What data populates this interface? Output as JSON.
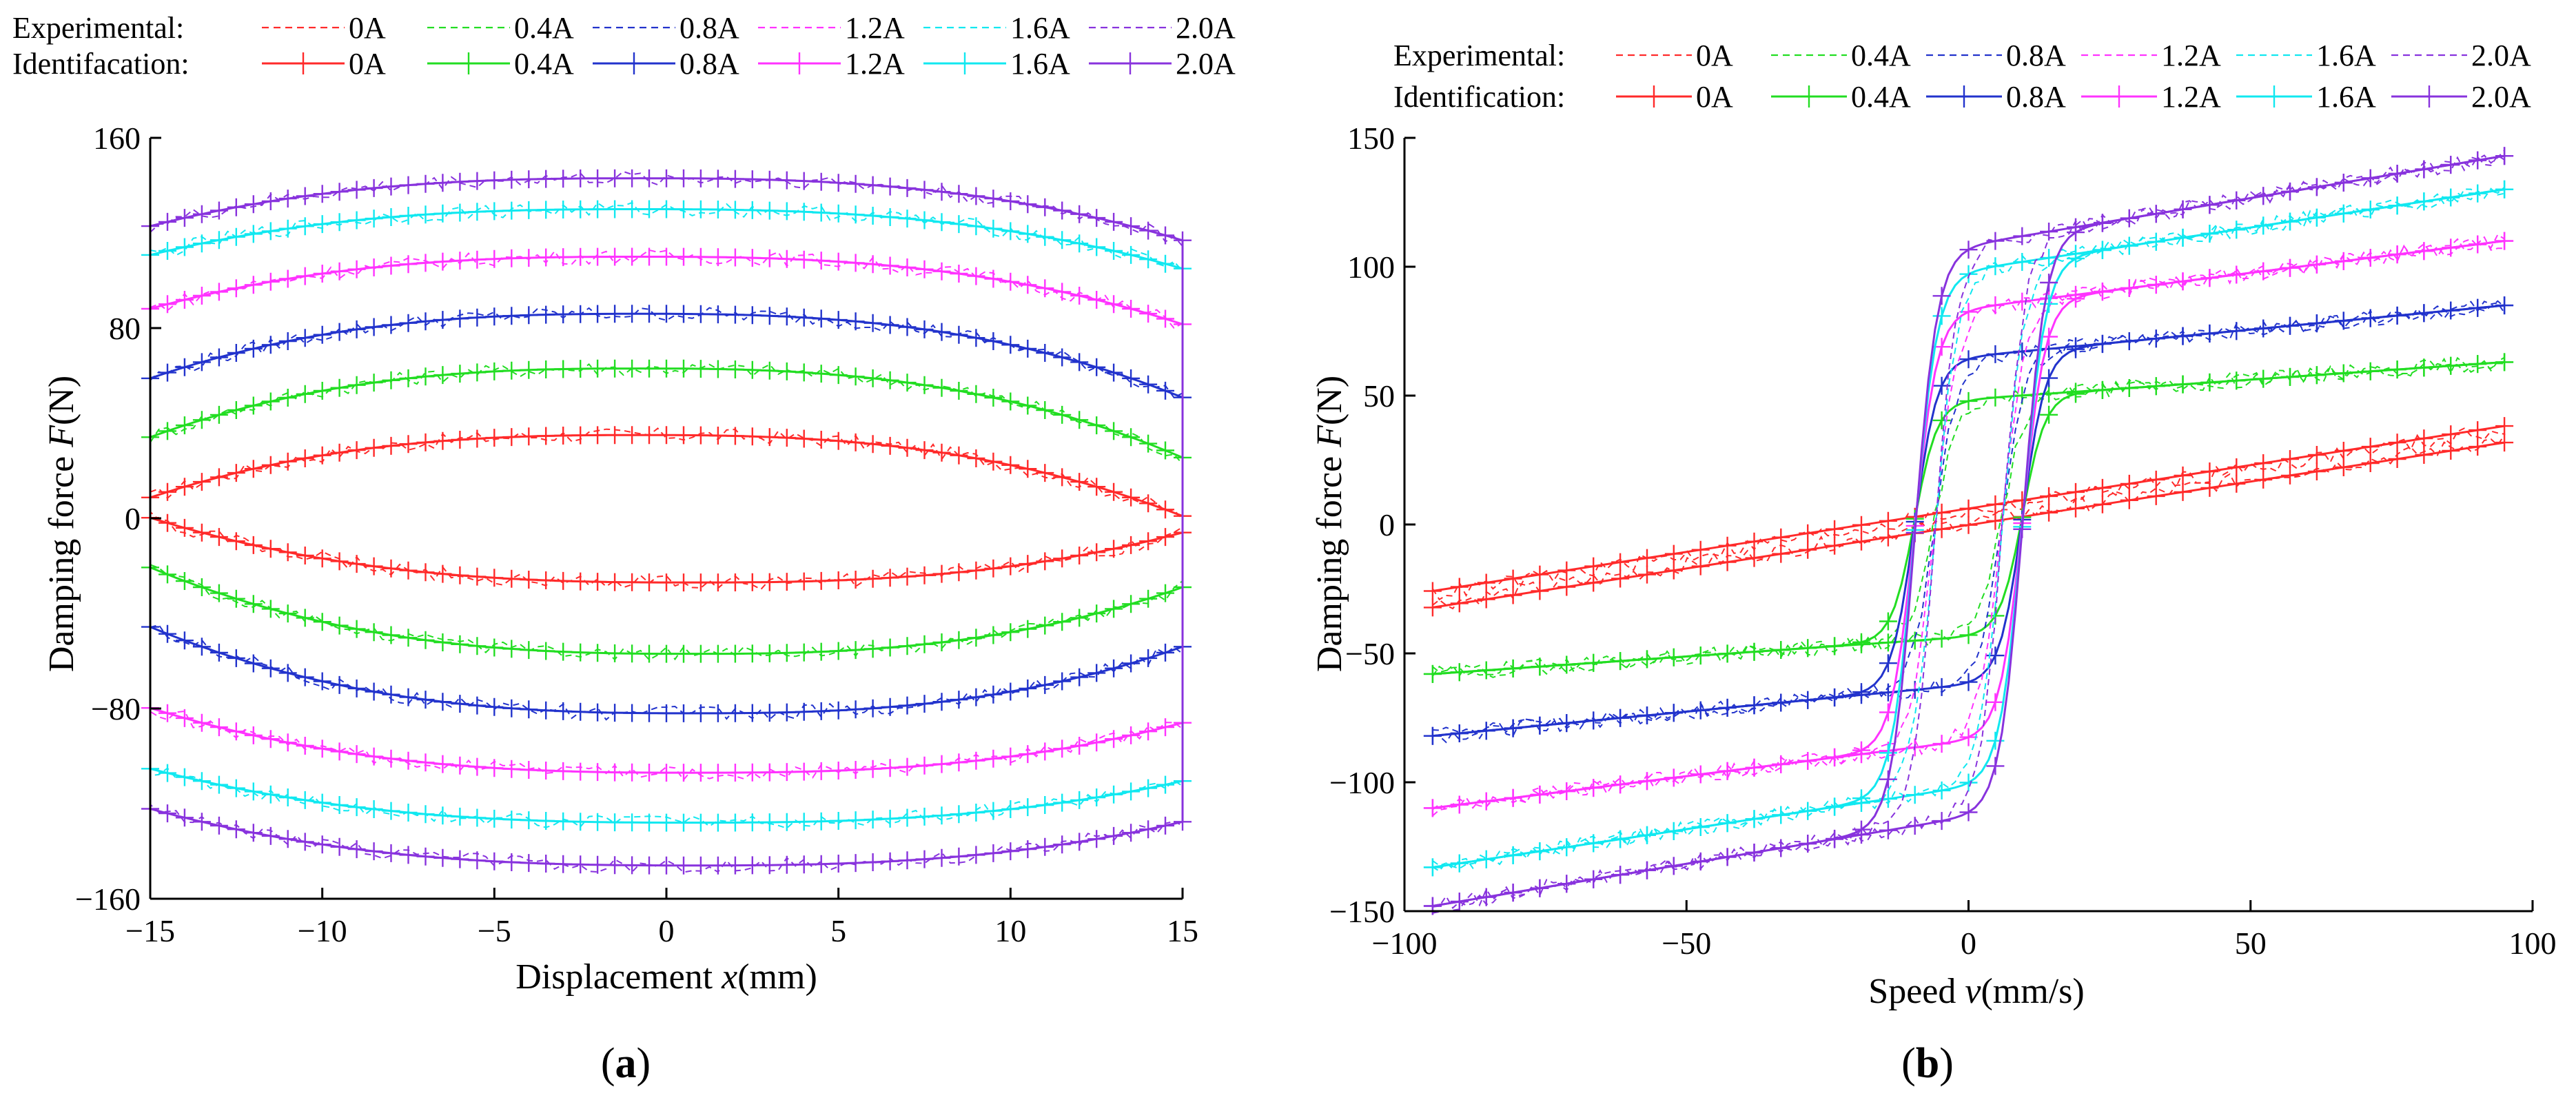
{
  "colors": {
    "0A": "#ff2a2a",
    "0.4A": "#22dd22",
    "0.8A": "#2233cc",
    "1.2A": "#ff33ff",
    "1.6A": "#11e8f0",
    "2.0A": "#8833dd"
  },
  "chart_data": [
    {
      "id": "a",
      "type": "line",
      "panel_label": "a",
      "legend": {
        "experimental_label": "Experimental",
        "identification_label": "Identifacation",
        "separator": ":",
        "entries": [
          "0A",
          "0.4A",
          "0.8A",
          "1.2A",
          "1.6A",
          "2.0A"
        ]
      },
      "xlabel_prefix": "Displacement ",
      "xlabel_var": "x",
      "xlabel_unit": "(mm)",
      "ylabel_prefix": "Damping force ",
      "ylabel_var": "F",
      "ylabel_unit": "(N)",
      "xlim": [
        -15,
        15
      ],
      "ylim": [
        -160,
        160
      ],
      "xticks": [
        -15,
        -10,
        -5,
        0,
        5,
        10,
        15
      ],
      "yticks": [
        -160,
        -80,
        0,
        80,
        160
      ],
      "xtick_labels": [
        "−15",
        "−10",
        "−5",
        "0",
        "5",
        "10",
        "15"
      ],
      "ytick_labels": [
        "−160",
        "−80",
        "0",
        "80",
        "160"
      ],
      "series": [
        {
          "name": "0A",
          "upper_peak": 35,
          "lower_peak": -27,
          "upper_edge": 5,
          "lower_edge": -3
        },
        {
          "name": "0.4A",
          "upper_peak": 63,
          "lower_peak": -57,
          "upper_edge": 30,
          "lower_edge": -25
        },
        {
          "name": "0.8A",
          "upper_peak": 86,
          "lower_peak": -82,
          "upper_edge": 55,
          "lower_edge": -50
        },
        {
          "name": "1.2A",
          "upper_peak": 110,
          "lower_peak": -107,
          "upper_edge": 85,
          "lower_edge": -83
        },
        {
          "name": "1.6A",
          "upper_peak": 130,
          "lower_peak": -128,
          "upper_edge": 108,
          "lower_edge": -108
        },
        {
          "name": "2.0A",
          "upper_peak": 143,
          "lower_peak": -146,
          "upper_edge": 120,
          "lower_edge": -125
        }
      ]
    },
    {
      "id": "b",
      "type": "line",
      "panel_label": "b",
      "legend": {
        "experimental_label": "Experimental",
        "identification_label": "Identification",
        "separator": ":",
        "entries": [
          "0A",
          "0.4A",
          "0.8A",
          "1.2A",
          "1.6A",
          "2.0A"
        ]
      },
      "xlabel_prefix": "Speed ",
      "xlabel_var": "v",
      "xlabel_unit": "(mm/s)",
      "ylabel_prefix": "Damping force ",
      "ylabel_var": "F",
      "ylabel_unit": "(N)",
      "xlim": [
        -100,
        100
      ],
      "ylim": [
        -150,
        150
      ],
      "xticks": [
        -100,
        -50,
        0,
        50,
        100
      ],
      "yticks": [
        -150,
        -100,
        -50,
        0,
        50,
        100,
        150
      ],
      "xtick_labels": [
        "−100",
        "−50",
        "0",
        "50",
        "100"
      ],
      "ytick_labels": [
        "−150",
        "−100",
        "−50",
        "0",
        "50",
        "100",
        "150"
      ],
      "series": [
        {
          "name": "0A",
          "low": -29,
          "high": 35,
          "knee": 0
        },
        {
          "name": "0.4A",
          "low": -58,
          "high": 63,
          "knee": 8
        },
        {
          "name": "0.8A",
          "low": -82,
          "high": 85,
          "knee": 12
        },
        {
          "name": "1.2A",
          "low": -110,
          "high": 110,
          "knee": 15
        },
        {
          "name": "1.6A",
          "low": -133,
          "high": 130,
          "knee": 16
        },
        {
          "name": "2.0A",
          "low": -148,
          "high": 143,
          "knee": 17
        }
      ]
    }
  ]
}
